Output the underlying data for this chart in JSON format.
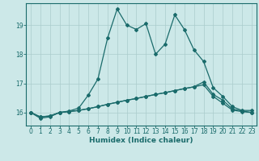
{
  "xlabel": "Humidex (Indice chaleur)",
  "background_color": "#cce8e8",
  "grid_color": "#aacccc",
  "line_color": "#1a6b6b",
  "xlim": [
    -0.5,
    23.5
  ],
  "ylim": [
    15.55,
    19.75
  ],
  "yticks": [
    16,
    17,
    18,
    19
  ],
  "xticks": [
    0,
    1,
    2,
    3,
    4,
    5,
    6,
    7,
    8,
    9,
    10,
    11,
    12,
    13,
    14,
    15,
    16,
    17,
    18,
    19,
    20,
    21,
    22,
    23
  ],
  "line1_x": [
    0,
    1,
    2,
    3,
    4,
    5,
    6,
    7,
    8,
    9,
    10,
    11,
    12,
    13,
    14,
    15,
    16,
    17,
    18,
    19,
    20,
    21,
    22,
    23
  ],
  "line1_y": [
    16.0,
    15.8,
    15.85,
    16.0,
    16.05,
    16.15,
    16.6,
    17.15,
    18.55,
    19.55,
    19.0,
    18.85,
    19.05,
    18.0,
    18.35,
    19.35,
    18.85,
    18.15,
    17.75,
    16.85,
    16.55,
    16.2,
    16.07,
    16.07
  ],
  "line2_x": [
    0,
    1,
    2,
    3,
    4,
    5,
    6,
    7,
    8,
    9,
    10,
    11,
    12,
    13,
    14,
    15,
    16,
    17,
    18,
    19,
    20,
    21,
    22,
    23
  ],
  "line2_y": [
    16.0,
    15.85,
    15.88,
    16.0,
    16.03,
    16.07,
    16.13,
    16.2,
    16.28,
    16.35,
    16.42,
    16.48,
    16.55,
    16.62,
    16.68,
    16.75,
    16.82,
    16.88,
    16.95,
    16.55,
    16.32,
    16.08,
    16.03,
    16.0
  ],
  "line3_x": [
    0,
    1,
    2,
    3,
    4,
    5,
    6,
    7,
    8,
    9,
    10,
    11,
    12,
    13,
    14,
    15,
    16,
    17,
    18,
    19,
    20,
    21,
    22,
    23
  ],
  "line3_y": [
    16.0,
    15.85,
    15.88,
    16.0,
    16.03,
    16.07,
    16.13,
    16.2,
    16.28,
    16.35,
    16.42,
    16.48,
    16.55,
    16.62,
    16.68,
    16.75,
    16.82,
    16.88,
    17.05,
    16.62,
    16.42,
    16.12,
    16.05,
    16.0
  ]
}
